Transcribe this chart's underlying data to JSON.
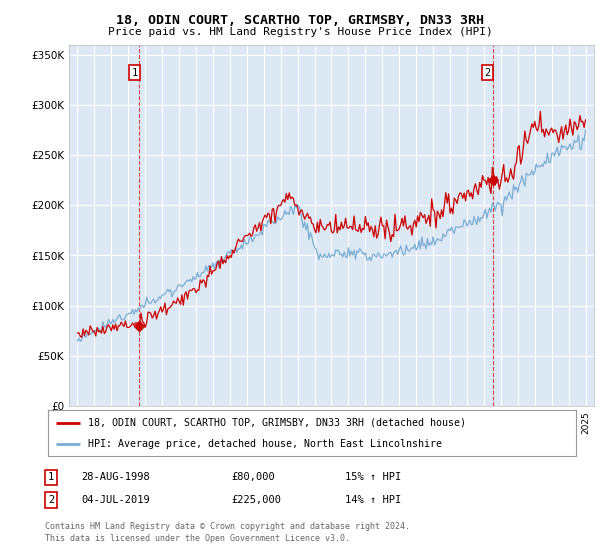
{
  "title": "18, ODIN COURT, SCARTHO TOP, GRIMSBY, DN33 3RH",
  "subtitle": "Price paid vs. HM Land Registry's House Price Index (HPI)",
  "background_color": "#dde8f5",
  "plot_bg_color": "#dde8f5",
  "grid_color": "#ffffff",
  "sale1": {
    "date_num": 1998.66,
    "price": 80000,
    "label": "1"
  },
  "sale2": {
    "date_num": 2019.51,
    "price": 225000,
    "label": "2"
  },
  "ylim": [
    0,
    360000
  ],
  "xlim": [
    1994.5,
    2025.5
  ],
  "yticks": [
    0,
    50000,
    100000,
    150000,
    200000,
    250000,
    300000,
    350000
  ],
  "xtick_years": [
    1995,
    1996,
    1997,
    1998,
    1999,
    2000,
    2001,
    2002,
    2003,
    2004,
    2005,
    2006,
    2007,
    2008,
    2009,
    2010,
    2011,
    2012,
    2013,
    2014,
    2015,
    2016,
    2017,
    2018,
    2019,
    2020,
    2021,
    2022,
    2023,
    2024,
    2025
  ],
  "legend_line1": "18, ODIN COURT, SCARTHO TOP, GRIMSBY, DN33 3RH (detached house)",
  "legend_line2": "HPI: Average price, detached house, North East Lincolnshire",
  "footer1": "Contains HM Land Registry data © Crown copyright and database right 2024.",
  "footer2": "This data is licensed under the Open Government Licence v3.0.",
  "table_row1": [
    "1",
    "28-AUG-1998",
    "£80,000",
    "15% ↑ HPI"
  ],
  "table_row2": [
    "2",
    "04-JUL-2019",
    "£225,000",
    "14% ↑ HPI"
  ],
  "red_color": "#cc0000",
  "blue_color": "#7aadd4"
}
